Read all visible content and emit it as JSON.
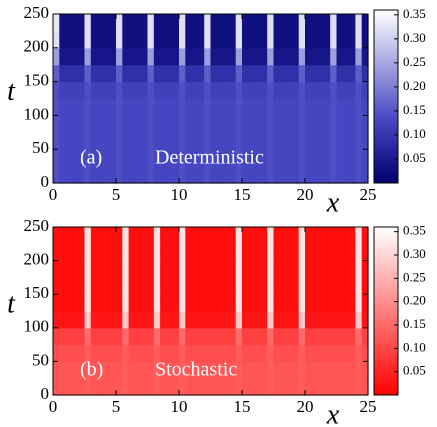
{
  "chart_data": [
    {
      "type": "heatmap",
      "annotation_label": "(a)",
      "annotation_text": "Deterministic",
      "xlabel": "x",
      "ylabel": "t",
      "xlim": [
        0,
        25
      ],
      "xticks": [
        0,
        5,
        10,
        15,
        20,
        25
      ],
      "ylim": [
        0,
        250
      ],
      "yticks": [
        0,
        50,
        100,
        150,
        200,
        250
      ],
      "clim": [
        0,
        0.36
      ],
      "cticks": [
        0.05,
        {
          "value": 0.1,
          "label": "0.10"
        },
        0.15,
        {
          "value": 0.2,
          "label": "0.20"
        },
        0.25,
        {
          "value": 0.3,
          "label": "0.30"
        },
        0.35
      ],
      "colormap": [
        {
          "value": 0,
          "color": "#00006e"
        },
        {
          "value": 0.13,
          "color": "#4646c2"
        },
        {
          "value": 0.36,
          "color": "#ffffff"
        }
      ],
      "z": [
        [
          0.14,
          0.13,
          0.13,
          0.13,
          0.13,
          0.14,
          0.13,
          0.13,
          0.13,
          0.13,
          0.14,
          0.13,
          0.13,
          0.13,
          0.13,
          0.14,
          0.13,
          0.13,
          0.13,
          0.13,
          0.14,
          0.13,
          0.13,
          0.13,
          0.14,
          0.13,
          0.13,
          0.13,
          0.13,
          0.14,
          0.13,
          0.13,
          0.13,
          0.13,
          0.14,
          0.13,
          0.13,
          0.13,
          0.13,
          0.14,
          0.13,
          0.13,
          0.13,
          0.13,
          0.14,
          0.13,
          0.13,
          0.13,
          0.14,
          0.13
        ],
        [
          0.14,
          0.13,
          0.13,
          0.13,
          0.13,
          0.14,
          0.13,
          0.13,
          0.13,
          0.13,
          0.14,
          0.13,
          0.13,
          0.13,
          0.13,
          0.14,
          0.13,
          0.13,
          0.13,
          0.13,
          0.14,
          0.13,
          0.13,
          0.13,
          0.14,
          0.13,
          0.13,
          0.13,
          0.13,
          0.14,
          0.13,
          0.13,
          0.13,
          0.13,
          0.14,
          0.13,
          0.13,
          0.13,
          0.13,
          0.14,
          0.13,
          0.13,
          0.13,
          0.13,
          0.14,
          0.13,
          0.13,
          0.13,
          0.14,
          0.13
        ],
        [
          0.14,
          0.13,
          0.13,
          0.13,
          0.13,
          0.14,
          0.13,
          0.13,
          0.13,
          0.13,
          0.14,
          0.13,
          0.13,
          0.13,
          0.13,
          0.14,
          0.13,
          0.13,
          0.13,
          0.13,
          0.14,
          0.13,
          0.13,
          0.13,
          0.14,
          0.13,
          0.13,
          0.13,
          0.13,
          0.14,
          0.13,
          0.13,
          0.13,
          0.13,
          0.14,
          0.13,
          0.13,
          0.13,
          0.13,
          0.14,
          0.13,
          0.13,
          0.13,
          0.13,
          0.14,
          0.13,
          0.13,
          0.13,
          0.14,
          0.13
        ],
        [
          0.14,
          0.13,
          0.13,
          0.13,
          0.13,
          0.14,
          0.13,
          0.13,
          0.13,
          0.13,
          0.14,
          0.13,
          0.13,
          0.13,
          0.13,
          0.14,
          0.13,
          0.13,
          0.13,
          0.13,
          0.14,
          0.13,
          0.13,
          0.13,
          0.14,
          0.13,
          0.13,
          0.13,
          0.13,
          0.14,
          0.13,
          0.13,
          0.13,
          0.13,
          0.14,
          0.13,
          0.13,
          0.13,
          0.13,
          0.14,
          0.13,
          0.13,
          0.13,
          0.13,
          0.14,
          0.13,
          0.13,
          0.13,
          0.14,
          0.13
        ],
        [
          0.14,
          0.13,
          0.13,
          0.13,
          0.13,
          0.14,
          0.13,
          0.13,
          0.13,
          0.13,
          0.14,
          0.13,
          0.13,
          0.13,
          0.13,
          0.14,
          0.13,
          0.13,
          0.13,
          0.13,
          0.14,
          0.13,
          0.13,
          0.13,
          0.14,
          0.13,
          0.13,
          0.13,
          0.13,
          0.14,
          0.13,
          0.13,
          0.13,
          0.13,
          0.14,
          0.13,
          0.13,
          0.13,
          0.13,
          0.14,
          0.13,
          0.13,
          0.13,
          0.13,
          0.14,
          0.13,
          0.13,
          0.13,
          0.14,
          0.13
        ],
        [
          0.14,
          0.12,
          0.12,
          0.12,
          0.12,
          0.14,
          0.12,
          0.12,
          0.12,
          0.12,
          0.14,
          0.12,
          0.12,
          0.12,
          0.12,
          0.14,
          0.12,
          0.12,
          0.12,
          0.12,
          0.14,
          0.12,
          0.12,
          0.12,
          0.14,
          0.12,
          0.12,
          0.12,
          0.12,
          0.14,
          0.12,
          0.12,
          0.12,
          0.12,
          0.14,
          0.12,
          0.12,
          0.12,
          0.12,
          0.14,
          0.12,
          0.12,
          0.12,
          0.12,
          0.14,
          0.12,
          0.12,
          0.12,
          0.14,
          0.12
        ],
        [
          0.16,
          0.09,
          0.09,
          0.09,
          0.09,
          0.16,
          0.09,
          0.09,
          0.09,
          0.09,
          0.16,
          0.09,
          0.09,
          0.09,
          0.09,
          0.16,
          0.09,
          0.09,
          0.09,
          0.09,
          0.16,
          0.09,
          0.09,
          0.09,
          0.16,
          0.09,
          0.09,
          0.09,
          0.09,
          0.16,
          0.09,
          0.09,
          0.09,
          0.09,
          0.16,
          0.09,
          0.09,
          0.09,
          0.09,
          0.16,
          0.09,
          0.09,
          0.09,
          0.09,
          0.16,
          0.09,
          0.09,
          0.09,
          0.16,
          0.09
        ],
        [
          0.24,
          0.04,
          0.04,
          0.04,
          0.04,
          0.24,
          0.04,
          0.04,
          0.04,
          0.04,
          0.24,
          0.04,
          0.04,
          0.04,
          0.04,
          0.24,
          0.04,
          0.04,
          0.04,
          0.04,
          0.24,
          0.04,
          0.04,
          0.04,
          0.24,
          0.04,
          0.04,
          0.04,
          0.04,
          0.24,
          0.04,
          0.04,
          0.04,
          0.04,
          0.24,
          0.04,
          0.04,
          0.04,
          0.04,
          0.24,
          0.04,
          0.04,
          0.04,
          0.04,
          0.24,
          0.04,
          0.04,
          0.04,
          0.24,
          0.04
        ],
        [
          0.32,
          0.03,
          0.03,
          0.03,
          0.03,
          0.32,
          0.03,
          0.03,
          0.03,
          0.03,
          0.32,
          0.03,
          0.03,
          0.03,
          0.03,
          0.32,
          0.03,
          0.03,
          0.03,
          0.03,
          0.32,
          0.03,
          0.03,
          0.03,
          0.32,
          0.03,
          0.03,
          0.03,
          0.03,
          0.32,
          0.03,
          0.03,
          0.03,
          0.03,
          0.32,
          0.03,
          0.03,
          0.03,
          0.03,
          0.32,
          0.03,
          0.03,
          0.03,
          0.03,
          0.32,
          0.03,
          0.03,
          0.03,
          0.32,
          0.03
        ],
        [
          0.33,
          0.03,
          0.03,
          0.03,
          0.03,
          0.32,
          0.03,
          0.03,
          0.03,
          0.03,
          0.32,
          0.03,
          0.03,
          0.03,
          0.03,
          0.32,
          0.03,
          0.03,
          0.03,
          0.03,
          0.32,
          0.03,
          0.03,
          0.03,
          0.32,
          0.03,
          0.03,
          0.03,
          0.03,
          0.32,
          0.03,
          0.03,
          0.03,
          0.03,
          0.32,
          0.03,
          0.03,
          0.03,
          0.03,
          0.32,
          0.03,
          0.03,
          0.03,
          0.03,
          0.32,
          0.03,
          0.03,
          0.03,
          0.32,
          0.03
        ]
      ]
    },
    {
      "type": "heatmap",
      "annotation_label": "(b)",
      "annotation_text": "Stochastic",
      "xlabel": "x",
      "ylabel": "t",
      "xlim": [
        0,
        25
      ],
      "xticks": [
        0,
        5,
        10,
        15,
        20,
        25
      ],
      "ylim": [
        0,
        250
      ],
      "yticks": [
        0,
        50,
        100,
        150,
        200,
        250
      ],
      "clim": [
        0,
        0.36
      ],
      "cticks": [
        0.05,
        {
          "value": 0.1,
          "label": "0.10"
        },
        0.15,
        {
          "value": 0.2,
          "label": "0.20"
        },
        0.25,
        {
          "value": 0.3,
          "label": "0.30"
        },
        0.35
      ],
      "colormap": [
        {
          "value": 0,
          "color": "#ff0000"
        },
        {
          "value": 0.36,
          "color": "#ffffff"
        }
      ],
      "z": [
        [
          0.12,
          0.12,
          0.12,
          0.12,
          0.12,
          0.13,
          0.12,
          0.12,
          0.12,
          0.12,
          0.12,
          0.13,
          0.12,
          0.12,
          0.12,
          0.12,
          0.13,
          0.12,
          0.12,
          0.12,
          0.13,
          0.12,
          0.12,
          0.12,
          0.12,
          0.12,
          0.12,
          0.12,
          0.12,
          0.13,
          0.12,
          0.12,
          0.12,
          0.12,
          0.13,
          0.12,
          0.12,
          0.12,
          0.12,
          0.13,
          0.12,
          0.12,
          0.12,
          0.12,
          0.12,
          0.12,
          0.12,
          0.12,
          0.13,
          0.12
        ],
        [
          0.12,
          0.12,
          0.12,
          0.12,
          0.12,
          0.13,
          0.12,
          0.12,
          0.12,
          0.12,
          0.12,
          0.13,
          0.12,
          0.12,
          0.12,
          0.12,
          0.13,
          0.12,
          0.12,
          0.12,
          0.13,
          0.12,
          0.12,
          0.12,
          0.12,
          0.12,
          0.12,
          0.12,
          0.12,
          0.13,
          0.12,
          0.12,
          0.12,
          0.12,
          0.13,
          0.12,
          0.12,
          0.12,
          0.12,
          0.13,
          0.12,
          0.12,
          0.12,
          0.12,
          0.12,
          0.12,
          0.12,
          0.12,
          0.13,
          0.12
        ],
        [
          0.11,
          0.11,
          0.11,
          0.11,
          0.11,
          0.13,
          0.11,
          0.11,
          0.11,
          0.11,
          0.11,
          0.13,
          0.11,
          0.11,
          0.11,
          0.11,
          0.13,
          0.11,
          0.11,
          0.11,
          0.13,
          0.11,
          0.11,
          0.11,
          0.11,
          0.11,
          0.11,
          0.11,
          0.11,
          0.13,
          0.11,
          0.11,
          0.11,
          0.11,
          0.13,
          0.11,
          0.11,
          0.11,
          0.11,
          0.13,
          0.11,
          0.11,
          0.11,
          0.11,
          0.11,
          0.11,
          0.11,
          0.11,
          0.13,
          0.11
        ],
        [
          0.09,
          0.09,
          0.09,
          0.09,
          0.09,
          0.15,
          0.09,
          0.09,
          0.09,
          0.09,
          0.09,
          0.15,
          0.09,
          0.09,
          0.09,
          0.09,
          0.15,
          0.09,
          0.09,
          0.09,
          0.15,
          0.09,
          0.09,
          0.09,
          0.09,
          0.09,
          0.09,
          0.09,
          0.09,
          0.15,
          0.09,
          0.09,
          0.09,
          0.09,
          0.15,
          0.09,
          0.09,
          0.09,
          0.09,
          0.15,
          0.09,
          0.09,
          0.09,
          0.09,
          0.09,
          0.09,
          0.09,
          0.09,
          0.15,
          0.09
        ],
        [
          0.03,
          0.03,
          0.03,
          0.03,
          0.03,
          0.28,
          0.03,
          0.03,
          0.03,
          0.03,
          0.03,
          0.28,
          0.03,
          0.03,
          0.03,
          0.03,
          0.28,
          0.03,
          0.03,
          0.03,
          0.28,
          0.03,
          0.03,
          0.03,
          0.03,
          0.03,
          0.03,
          0.03,
          0.03,
          0.28,
          0.03,
          0.03,
          0.03,
          0.03,
          0.28,
          0.03,
          0.03,
          0.03,
          0.03,
          0.28,
          0.03,
          0.03,
          0.03,
          0.03,
          0.03,
          0.03,
          0.03,
          0.03,
          0.28,
          0.03
        ],
        [
          0.02,
          0.02,
          0.02,
          0.02,
          0.02,
          0.32,
          0.02,
          0.02,
          0.02,
          0.02,
          0.02,
          0.32,
          0.02,
          0.02,
          0.02,
          0.02,
          0.32,
          0.02,
          0.02,
          0.02,
          0.32,
          0.02,
          0.02,
          0.02,
          0.02,
          0.02,
          0.02,
          0.02,
          0.02,
          0.32,
          0.02,
          0.02,
          0.02,
          0.02,
          0.32,
          0.02,
          0.02,
          0.02,
          0.02,
          0.32,
          0.02,
          0.02,
          0.02,
          0.02,
          0.02,
          0.02,
          0.02,
          0.02,
          0.32,
          0.02
        ],
        [
          0.02,
          0.02,
          0.02,
          0.02,
          0.02,
          0.32,
          0.02,
          0.02,
          0.02,
          0.02,
          0.02,
          0.32,
          0.02,
          0.02,
          0.02,
          0.02,
          0.32,
          0.02,
          0.02,
          0.02,
          0.32,
          0.02,
          0.02,
          0.02,
          0.02,
          0.02,
          0.02,
          0.02,
          0.02,
          0.32,
          0.02,
          0.02,
          0.02,
          0.02,
          0.32,
          0.02,
          0.02,
          0.02,
          0.02,
          0.32,
          0.02,
          0.02,
          0.02,
          0.02,
          0.02,
          0.02,
          0.02,
          0.02,
          0.32,
          0.02
        ],
        [
          0.02,
          0.02,
          0.02,
          0.02,
          0.02,
          0.32,
          0.02,
          0.02,
          0.02,
          0.02,
          0.02,
          0.32,
          0.02,
          0.02,
          0.02,
          0.02,
          0.32,
          0.02,
          0.02,
          0.02,
          0.32,
          0.02,
          0.02,
          0.02,
          0.02,
          0.02,
          0.02,
          0.02,
          0.02,
          0.32,
          0.02,
          0.02,
          0.02,
          0.02,
          0.32,
          0.02,
          0.02,
          0.02,
          0.02,
          0.32,
          0.02,
          0.02,
          0.02,
          0.02,
          0.02,
          0.02,
          0.02,
          0.02,
          0.32,
          0.02
        ],
        [
          0.02,
          0.02,
          0.02,
          0.02,
          0.02,
          0.32,
          0.02,
          0.02,
          0.02,
          0.02,
          0.02,
          0.32,
          0.02,
          0.02,
          0.02,
          0.02,
          0.32,
          0.02,
          0.02,
          0.02,
          0.32,
          0.02,
          0.02,
          0.02,
          0.02,
          0.02,
          0.02,
          0.02,
          0.02,
          0.32,
          0.02,
          0.02,
          0.02,
          0.02,
          0.32,
          0.02,
          0.02,
          0.02,
          0.02,
          0.32,
          0.02,
          0.02,
          0.02,
          0.02,
          0.02,
          0.02,
          0.02,
          0.02,
          0.32,
          0.02
        ],
        [
          0.02,
          0.02,
          0.02,
          0.02,
          0.02,
          0.32,
          0.02,
          0.02,
          0.02,
          0.02,
          0.02,
          0.32,
          0.02,
          0.02,
          0.02,
          0.02,
          0.32,
          0.02,
          0.02,
          0.02,
          0.32,
          0.02,
          0.02,
          0.02,
          0.02,
          0.02,
          0.02,
          0.02,
          0.02,
          0.32,
          0.02,
          0.02,
          0.02,
          0.02,
          0.32,
          0.02,
          0.02,
          0.02,
          0.02,
          0.32,
          0.02,
          0.02,
          0.02,
          0.02,
          0.02,
          0.02,
          0.02,
          0.02,
          0.32,
          0.02
        ]
      ]
    }
  ]
}
